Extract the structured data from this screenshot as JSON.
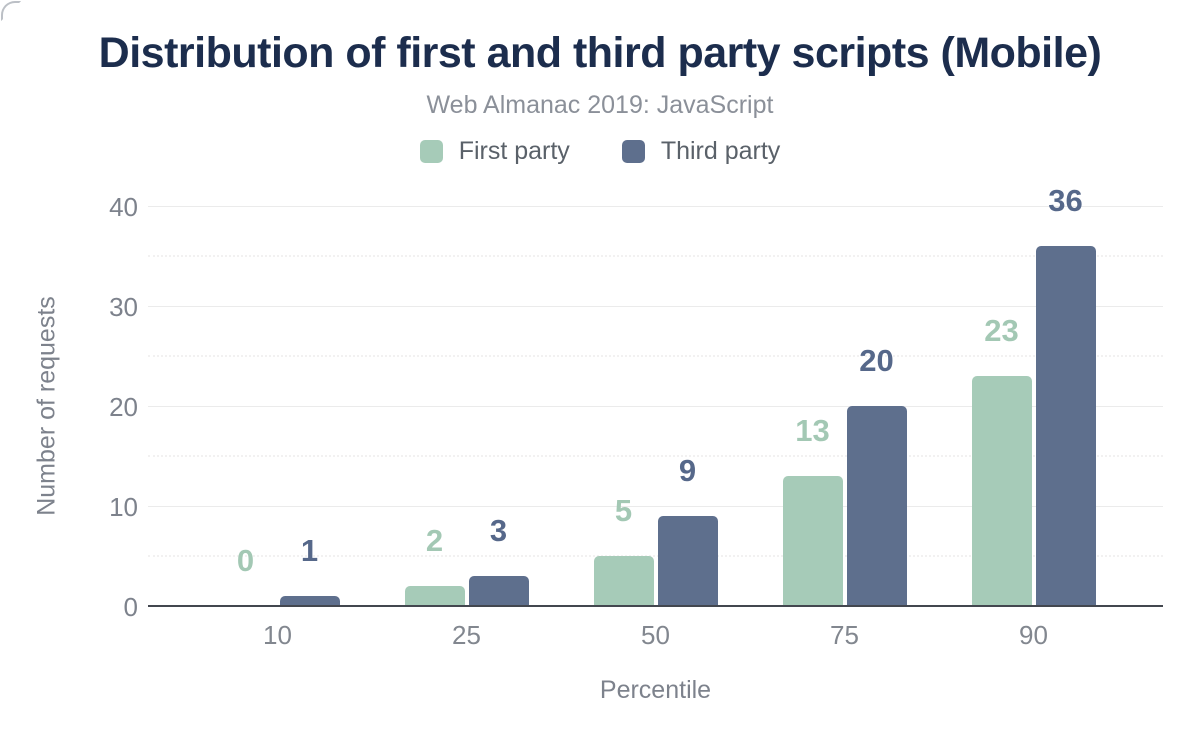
{
  "title": "Distribution of first and third party scripts (Mobile)",
  "subtitle": "Web Almanac 2019: JavaScript",
  "colors": {
    "title": "#1c2d4d",
    "subtitle": "#8b9099",
    "axis_text": "#7d828c",
    "axis_line": "#43474f",
    "gridline_major": "#ebebeb",
    "gridline_minor": "#f2f1f1",
    "first_party": "#a6cbb8",
    "third_party": "#5e6f8d"
  },
  "chart_data": {
    "type": "bar",
    "title": "Distribution of first and third party scripts (Mobile)",
    "subtitle": "Web Almanac 2019: JavaScript",
    "categories": [
      "10",
      "25",
      "50",
      "75",
      "90"
    ],
    "series": [
      {
        "name": "First party",
        "color": "#a6cbb8",
        "label_color": "#a3c8b4",
        "values": [
          0,
          2,
          5,
          13,
          23
        ]
      },
      {
        "name": "Third party",
        "color": "#5e6f8d",
        "label_color": "#56688a",
        "values": [
          1,
          3,
          9,
          20,
          36
        ]
      }
    ],
    "xlabel": "Percentile",
    "ylabel": "Number of requests",
    "ylim": [
      0,
      40
    ],
    "yticks": [
      0,
      10,
      20,
      30,
      40
    ],
    "grid": "major horizontal solid, minor horizontal dotted at 5-unit intervals",
    "legend_position": "top center",
    "data_labels": true
  }
}
